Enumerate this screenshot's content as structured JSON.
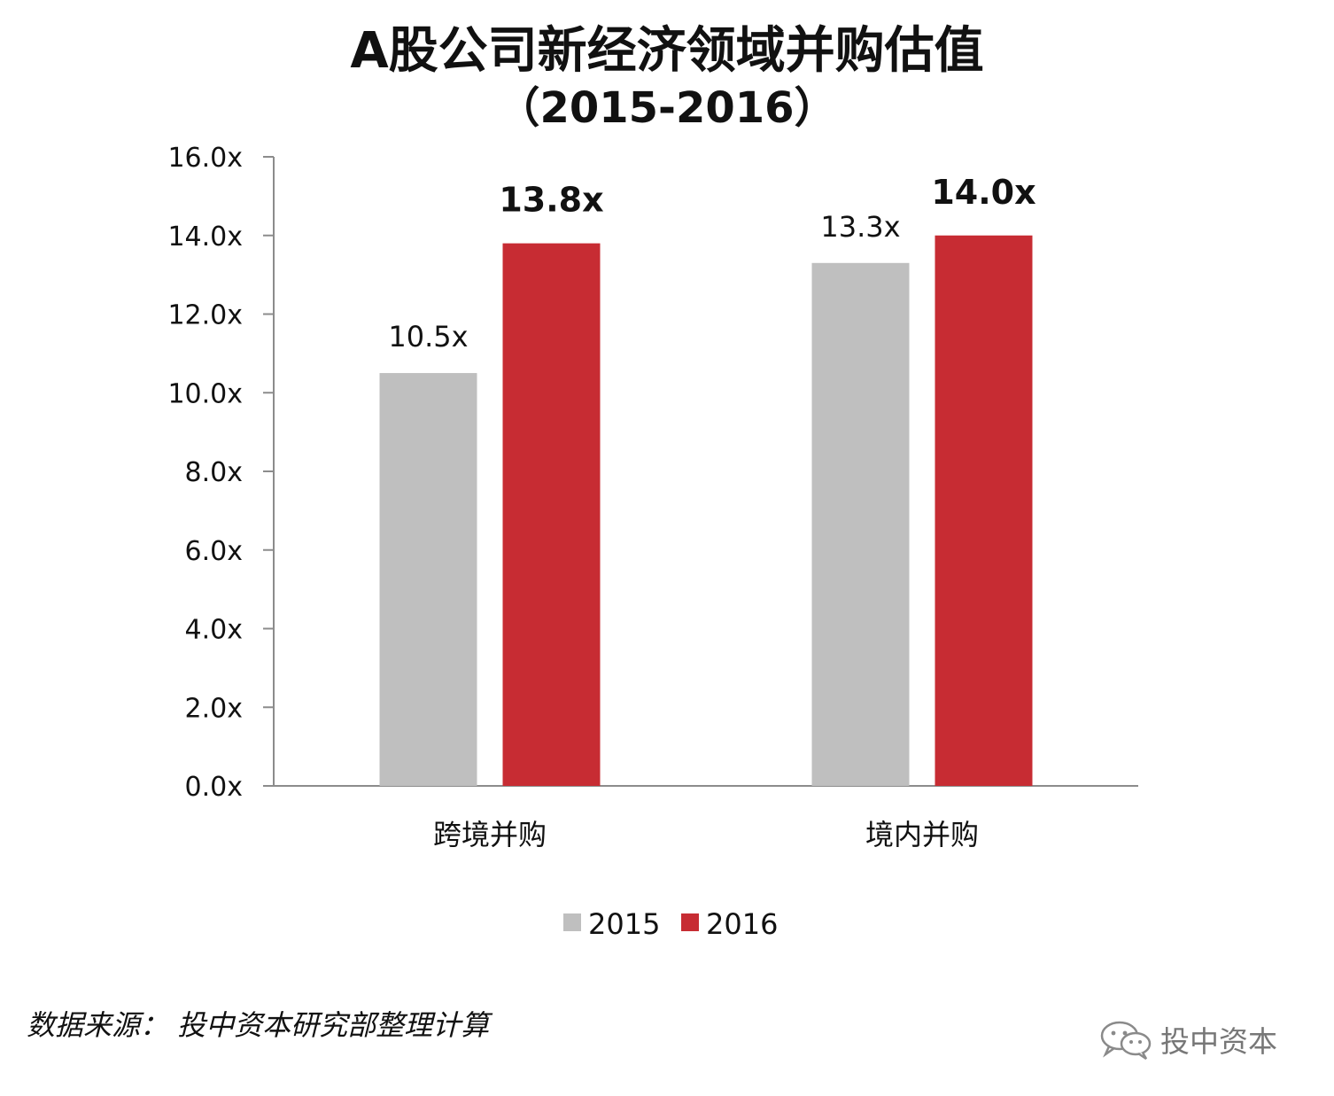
{
  "chart_data": {
    "type": "bar",
    "title": "A股公司新经济领域并购估值",
    "subtitle": "（2015-2016）",
    "categories": [
      "跨境并购",
      "境内并购"
    ],
    "series": [
      {
        "name": "2015",
        "values": [
          10.5,
          13.3
        ],
        "labels": [
          "10.5x",
          "13.3x"
        ],
        "color": "#bfbfbf",
        "label_bold": false
      },
      {
        "name": "2016",
        "values": [
          13.8,
          14.0
        ],
        "labels": [
          "13.8x",
          "14.0x"
        ],
        "color": "#c72c33",
        "label_bold": true
      }
    ],
    "ylim": [
      0,
      16
    ],
    "yticks": [
      "0.0x",
      "2.0x",
      "4.0x",
      "6.0x",
      "8.0x",
      "10.0x",
      "12.0x",
      "14.0x",
      "16.0x"
    ],
    "ytick_values": [
      0,
      2,
      4,
      6,
      8,
      10,
      12,
      14,
      16
    ],
    "legend_position": "bottom-center",
    "grid": false
  },
  "footer": {
    "source": "数据来源： 投中资本研究部整理计算",
    "watermark": "投中资本"
  }
}
